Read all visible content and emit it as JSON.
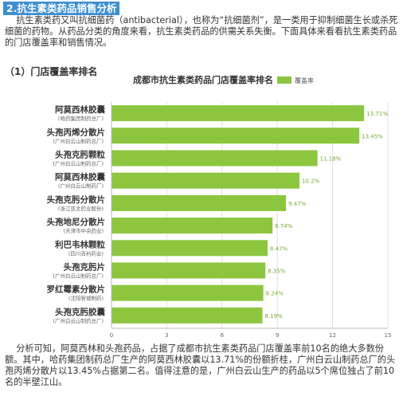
{
  "section_title": "2.抗生素类药品销售分析",
  "intro_text": "    抗生素类药又叫抗细菌药（antibacterial），也称为“抗细菌剂”，是一类用于抑制细菌生长或杀死细菌的药物。从药品分类的角度来看，抗生素类药品的供需关系失衡。下面具体来看看抗生素类药品的门店覆盖率和销售情况。",
  "subsection_title": "（1）门店覆盖率排名",
  "chart_data": {
    "type": "bar",
    "orientation": "horizontal",
    "title": "成都市抗生素类药品门店覆盖率排名",
    "legend": {
      "label": "覆盖率",
      "placement": "top-right"
    },
    "color": "#8cc63f",
    "xlim": [
      0,
      15
    ],
    "xticks": [
      "0",
      "3",
      "6",
      "9",
      "12",
      "15"
    ],
    "grid": true,
    "categories": [
      {
        "name": "阿莫西林胶囊",
        "maker": "(哈药集团制药总厂)",
        "value": 13.71,
        "label": "13.71%"
      },
      {
        "name": "头孢丙烯分散片",
        "maker": "(广州白云山制药总厂)",
        "value": 13.45,
        "label": "13.45%"
      },
      {
        "name": "头孢克肟颗粒",
        "maker": "(广州白云山制药总厂)",
        "value": 11.18,
        "label": "11.18%"
      },
      {
        "name": "阿莫西林胶囊",
        "maker": "(广州白云山制药厂)",
        "value": 10.2,
        "label": "10.2%"
      },
      {
        "name": "头孢克肟分散片",
        "maker": "(浙江亚太药业股份)",
        "value": 9.47,
        "label": "9.47%"
      },
      {
        "name": "头孢地尼分散片",
        "maker": "(天津市中央药业)",
        "value": 8.74,
        "label": "8.74%"
      },
      {
        "name": "利巴韦林颗粒",
        "maker": "(四川百利药业)",
        "value": 8.47,
        "label": "8.47%"
      },
      {
        "name": "头孢克肟片",
        "maker": "(广州白云山制药总厂)",
        "value": 8.35,
        "label": "8.35%"
      },
      {
        "name": "罗红霉素分散片",
        "maker": "(沈阳管城制药)",
        "value": 8.24,
        "label": "8.24%"
      },
      {
        "name": "头孢克肟胶囊",
        "maker": "(广州白云山制药总厂)",
        "value": 8.19,
        "label": "8.19%"
      }
    ]
  },
  "analysis_text": "    分析可知，阿莫西林和头孢药品，占据了成都市抗生素类药品门店覆盖率前10名的绝大多数份额。其中，哈药集团制药总厂生产的阿莫西林胶囊以13.71%的份额折桂，广州白云山制药总厂的头孢丙烯分散片以13.45%占据第二名。值得注意的是，广州白云山生产的药品以5个席位独占了前10名的半壁江山。"
}
